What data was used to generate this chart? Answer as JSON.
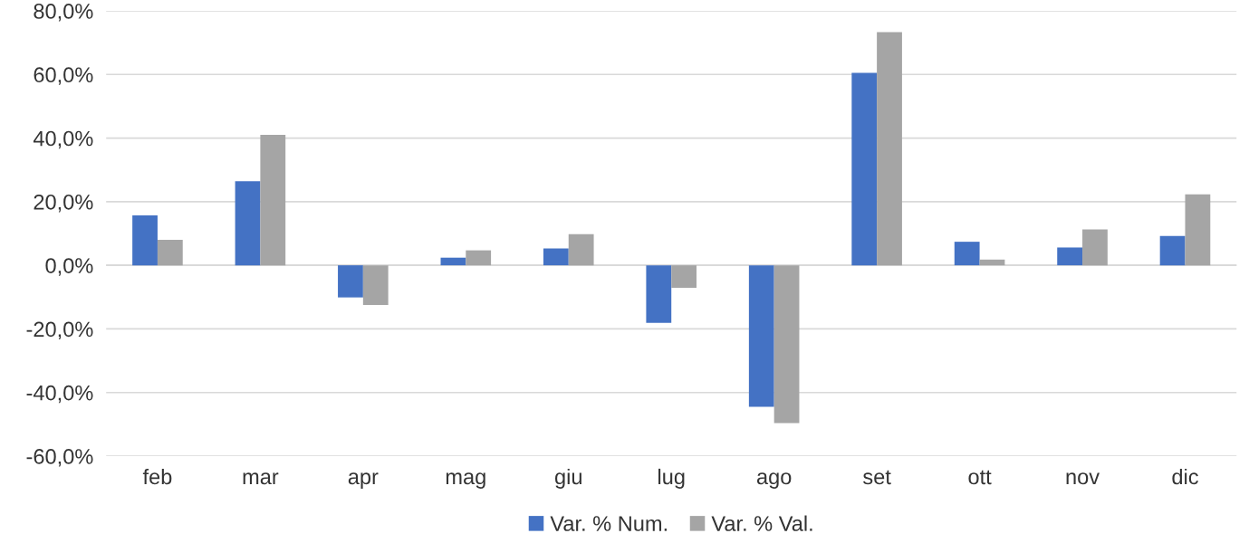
{
  "chart_data": {
    "type": "bar",
    "categories": [
      "feb",
      "mar",
      "apr",
      "mag",
      "giu",
      "lug",
      "ago",
      "set",
      "ott",
      "nov",
      "dic"
    ],
    "series": [
      {
        "name": "Var. % Num.",
        "color": "#4472c4",
        "values": [
          15.7,
          26.4,
          -10.1,
          2.4,
          5.3,
          -18.1,
          -44.5,
          60.5,
          7.4,
          5.6,
          9.2
        ]
      },
      {
        "name": "Var. % Val.",
        "color": "#a5a5a5",
        "values": [
          8.0,
          41.0,
          -12.5,
          4.7,
          9.8,
          -7.1,
          -49.6,
          73.3,
          1.8,
          11.3,
          22.3
        ]
      }
    ],
    "ylim": [
      -60,
      80
    ],
    "yticks": [
      {
        "value": -60,
        "label": "-60,0%"
      },
      {
        "value": -40,
        "label": "-40,0%"
      },
      {
        "value": -20,
        "label": "-20,0%"
      },
      {
        "value": 0,
        "label": "0,0%"
      },
      {
        "value": 20,
        "label": "20,0%"
      },
      {
        "value": 40,
        "label": "40,0%"
      },
      {
        "value": 60,
        "label": "60,0%"
      },
      {
        "value": 80,
        "label": "80,0%"
      }
    ],
    "grid": "y",
    "legend": "bottom"
  }
}
